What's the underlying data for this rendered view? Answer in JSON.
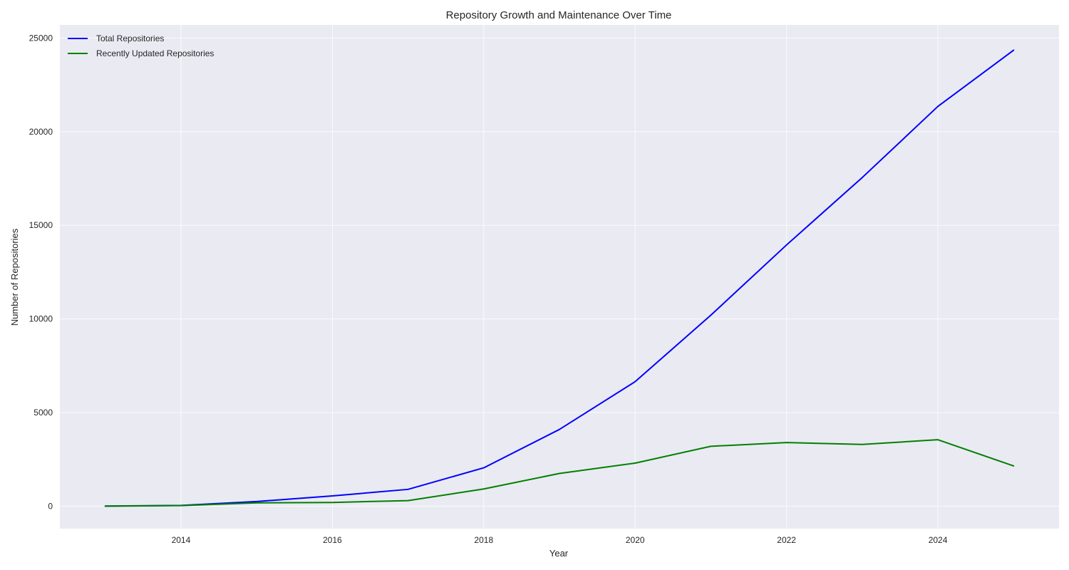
{
  "chart_data": {
    "type": "line",
    "title": "Repository Growth and Maintenance Over Time",
    "xlabel": "Year",
    "ylabel": "Number of Repositories",
    "x": [
      2013,
      2014,
      2015,
      2016,
      2017,
      2018,
      2019,
      2020,
      2021,
      2022,
      2023,
      2024,
      2025
    ],
    "series": [
      {
        "name": "Total Repositories",
        "color": "#0000ff",
        "values": [
          10,
          40,
          250,
          550,
          900,
          2050,
          4100,
          6650,
          10200,
          13950,
          17550,
          21350,
          24350
        ]
      },
      {
        "name": "Recently Updated Repositories",
        "color": "#008000",
        "values": [
          5,
          30,
          180,
          200,
          300,
          920,
          1750,
          2300,
          3200,
          3400,
          3300,
          3550,
          2150
        ]
      }
    ],
    "xlim": [
      2012.4,
      2025.6
    ],
    "ylim": [
      -1200,
      25700
    ],
    "xticks": [
      2014,
      2016,
      2018,
      2020,
      2022,
      2024
    ],
    "yticks": [
      0,
      5000,
      10000,
      15000,
      20000,
      25000
    ],
    "grid": true,
    "legend_position": "top-left",
    "background_color": "#eaeaf2"
  }
}
